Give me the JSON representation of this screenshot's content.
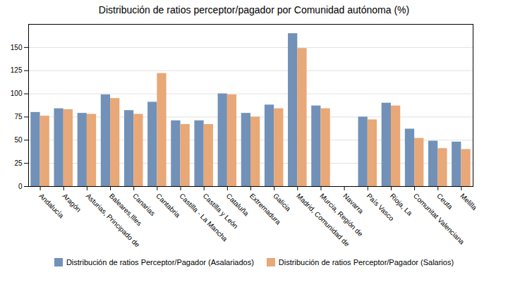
{
  "chart_data": {
    "type": "bar",
    "title": "Distribución de ratios perceptor/pagador por Comunidad autónoma (%)",
    "categories": [
      "Andalucía",
      "Aragón",
      "Asturias, Principado de",
      "Baleares,Illes",
      "Canarias",
      "Cantabria",
      "Castilla - La Mancha",
      "Castilla y León",
      "Cataluña",
      "Extremadura",
      "Galicia",
      "Madrid, Comunidad de",
      "Murcia, Región de",
      "Navarra",
      "País Vasco",
      "Rioja, La",
      "Comunitat Valenciana",
      "Ceuta",
      "Melilla"
    ],
    "series": [
      {
        "name": "Distribución de ratios Perceptor/Pagador (Asalariados)",
        "color": "#7191b8",
        "values": [
          80,
          84,
          79,
          99,
          82,
          91,
          71,
          71,
          100,
          79,
          88,
          165,
          87,
          0,
          75,
          90,
          62,
          49,
          48
        ]
      },
      {
        "name": "Distribución de ratios Perceptor/Pagador (Salarios)",
        "color": "#e8a878",
        "values": [
          76,
          83,
          78,
          95,
          78,
          122,
          67,
          67,
          99,
          75,
          84,
          149,
          84,
          0,
          72,
          87,
          52,
          41,
          40
        ]
      }
    ],
    "ylim": [
      0,
      175
    ],
    "yticks": [
      0,
      25,
      50,
      75,
      100,
      125,
      150
    ],
    "grid": true,
    "legend": "bottom"
  }
}
